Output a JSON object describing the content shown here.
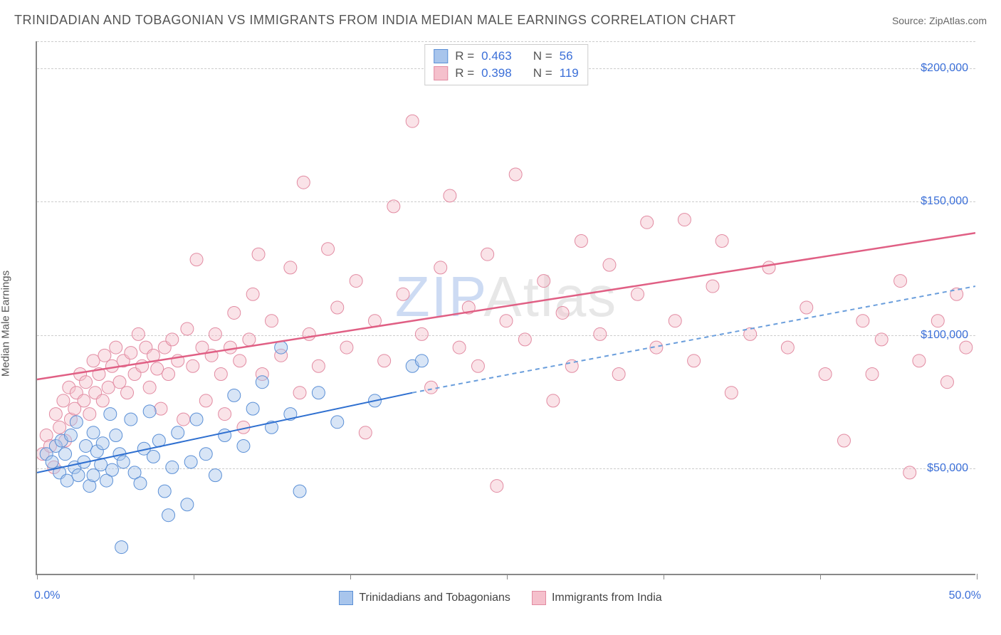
{
  "title": "TRINIDADIAN AND TOBAGONIAN VS IMMIGRANTS FROM INDIA MEDIAN MALE EARNINGS CORRELATION CHART",
  "source_label": "Source:",
  "source_name": "ZipAtlas.com",
  "ylabel": "Median Male Earnings",
  "watermark_a": "ZIP",
  "watermark_b": "Atlas",
  "chart": {
    "type": "scatter",
    "xlim": [
      0,
      50
    ],
    "ylim": [
      10000,
      210000
    ],
    "x_tick_positions": [
      0,
      8.33,
      16.67,
      25,
      33.33,
      41.67,
      50
    ],
    "x_tick_labels_shown": {
      "0": "0.0%",
      "50": "50.0%"
    },
    "y_gridlines": [
      50000,
      100000,
      150000,
      200000
    ],
    "y_tick_labels": [
      "$50,000",
      "$100,000",
      "$150,000",
      "$200,000"
    ],
    "y_grid_extra_top": 210000,
    "grid_color": "#cccccc",
    "background_color": "#ffffff",
    "axis_color": "#888888",
    "marker_radius": 9,
    "marker_opacity": 0.45,
    "series": [
      {
        "name": "Trinidadians and Tobagonians",
        "color_fill": "#a8c5ec",
        "color_stroke": "#5a8fd6",
        "r": 0.463,
        "n": 56,
        "trend": {
          "x1": 0,
          "y1": 48000,
          "x2": 20,
          "y2": 78000,
          "extend_x2": 50,
          "extend_y2": 118000,
          "solid_color": "#2e6fd0",
          "dash_color": "#6a9edc",
          "width": 2
        },
        "points": [
          [
            0.5,
            55000
          ],
          [
            0.8,
            52000
          ],
          [
            1.0,
            58000
          ],
          [
            1.2,
            48000
          ],
          [
            1.3,
            60000
          ],
          [
            1.5,
            55000
          ],
          [
            1.6,
            45000
          ],
          [
            1.8,
            62000
          ],
          [
            2.0,
            50000
          ],
          [
            2.1,
            67000
          ],
          [
            2.2,
            47000
          ],
          [
            2.5,
            52000
          ],
          [
            2.6,
            58000
          ],
          [
            2.8,
            43000
          ],
          [
            3.0,
            63000
          ],
          [
            3.0,
            47000
          ],
          [
            3.2,
            56000
          ],
          [
            3.4,
            51000
          ],
          [
            3.5,
            59000
          ],
          [
            3.7,
            45000
          ],
          [
            3.9,
            70000
          ],
          [
            4.0,
            49000
          ],
          [
            4.2,
            62000
          ],
          [
            4.4,
            55000
          ],
          [
            4.5,
            20000
          ],
          [
            4.6,
            52000
          ],
          [
            5.0,
            68000
          ],
          [
            5.2,
            48000
          ],
          [
            5.5,
            44000
          ],
          [
            5.7,
            57000
          ],
          [
            6.0,
            71000
          ],
          [
            6.2,
            54000
          ],
          [
            6.5,
            60000
          ],
          [
            6.8,
            41000
          ],
          [
            7.0,
            32000
          ],
          [
            7.2,
            50000
          ],
          [
            7.5,
            63000
          ],
          [
            8.0,
            36000
          ],
          [
            8.2,
            52000
          ],
          [
            8.5,
            68000
          ],
          [
            9.0,
            55000
          ],
          [
            9.5,
            47000
          ],
          [
            10.0,
            62000
          ],
          [
            10.5,
            77000
          ],
          [
            11.0,
            58000
          ],
          [
            11.5,
            72000
          ],
          [
            12.0,
            82000
          ],
          [
            12.5,
            65000
          ],
          [
            13.0,
            95000
          ],
          [
            13.5,
            70000
          ],
          [
            14.0,
            41000
          ],
          [
            15.0,
            78000
          ],
          [
            16.0,
            67000
          ],
          [
            18.0,
            75000
          ],
          [
            20.0,
            88000
          ],
          [
            20.5,
            90000
          ]
        ]
      },
      {
        "name": "Immigrants from India",
        "color_fill": "#f5c0cc",
        "color_stroke": "#e28ba2",
        "r": 0.398,
        "n": 119,
        "trend": {
          "x1": 0,
          "y1": 83000,
          "x2": 50,
          "y2": 138000,
          "solid_color": "#e05f84",
          "width": 2.5
        },
        "points": [
          [
            0.3,
            55000
          ],
          [
            0.5,
            62000
          ],
          [
            0.7,
            58000
          ],
          [
            0.9,
            50000
          ],
          [
            1.0,
            70000
          ],
          [
            1.2,
            65000
          ],
          [
            1.4,
            75000
          ],
          [
            1.5,
            60000
          ],
          [
            1.7,
            80000
          ],
          [
            1.8,
            68000
          ],
          [
            2.0,
            72000
          ],
          [
            2.1,
            78000
          ],
          [
            2.3,
            85000
          ],
          [
            2.5,
            75000
          ],
          [
            2.6,
            82000
          ],
          [
            2.8,
            70000
          ],
          [
            3.0,
            90000
          ],
          [
            3.1,
            78000
          ],
          [
            3.3,
            85000
          ],
          [
            3.5,
            75000
          ],
          [
            3.6,
            92000
          ],
          [
            3.8,
            80000
          ],
          [
            4.0,
            88000
          ],
          [
            4.2,
            95000
          ],
          [
            4.4,
            82000
          ],
          [
            4.6,
            90000
          ],
          [
            4.8,
            78000
          ],
          [
            5.0,
            93000
          ],
          [
            5.2,
            85000
          ],
          [
            5.4,
            100000
          ],
          [
            5.6,
            88000
          ],
          [
            5.8,
            95000
          ],
          [
            6.0,
            80000
          ],
          [
            6.2,
            92000
          ],
          [
            6.4,
            87000
          ],
          [
            6.6,
            72000
          ],
          [
            6.8,
            95000
          ],
          [
            7.0,
            85000
          ],
          [
            7.2,
            98000
          ],
          [
            7.5,
            90000
          ],
          [
            7.8,
            68000
          ],
          [
            8.0,
            102000
          ],
          [
            8.3,
            88000
          ],
          [
            8.5,
            128000
          ],
          [
            8.8,
            95000
          ],
          [
            9.0,
            75000
          ],
          [
            9.3,
            92000
          ],
          [
            9.5,
            100000
          ],
          [
            9.8,
            85000
          ],
          [
            10.0,
            70000
          ],
          [
            10.3,
            95000
          ],
          [
            10.5,
            108000
          ],
          [
            10.8,
            90000
          ],
          [
            11.0,
            65000
          ],
          [
            11.3,
            98000
          ],
          [
            11.5,
            115000
          ],
          [
            11.8,
            130000
          ],
          [
            12.0,
            85000
          ],
          [
            12.5,
            105000
          ],
          [
            13.0,
            92000
          ],
          [
            13.5,
            125000
          ],
          [
            14.0,
            78000
          ],
          [
            14.2,
            157000
          ],
          [
            14.5,
            100000
          ],
          [
            15.0,
            88000
          ],
          [
            15.5,
            132000
          ],
          [
            16.0,
            110000
          ],
          [
            16.5,
            95000
          ],
          [
            17.0,
            120000
          ],
          [
            17.5,
            63000
          ],
          [
            18.0,
            105000
          ],
          [
            18.5,
            90000
          ],
          [
            19.0,
            148000
          ],
          [
            19.5,
            115000
          ],
          [
            20.0,
            180000
          ],
          [
            20.5,
            100000
          ],
          [
            21.0,
            80000
          ],
          [
            21.5,
            125000
          ],
          [
            22.0,
            152000
          ],
          [
            22.5,
            95000
          ],
          [
            23.0,
            110000
          ],
          [
            23.5,
            88000
          ],
          [
            24.0,
            130000
          ],
          [
            24.5,
            43000
          ],
          [
            25.0,
            105000
          ],
          [
            25.5,
            160000
          ],
          [
            26.0,
            98000
          ],
          [
            27.0,
            120000
          ],
          [
            27.5,
            75000
          ],
          [
            28.0,
            108000
          ],
          [
            28.5,
            88000
          ],
          [
            29.0,
            135000
          ],
          [
            30.0,
            100000
          ],
          [
            30.5,
            126000
          ],
          [
            31.0,
            85000
          ],
          [
            32.0,
            115000
          ],
          [
            32.5,
            142000
          ],
          [
            33.0,
            95000
          ],
          [
            34.0,
            105000
          ],
          [
            34.5,
            143000
          ],
          [
            35.0,
            90000
          ],
          [
            36.0,
            118000
          ],
          [
            36.5,
            135000
          ],
          [
            37.0,
            78000
          ],
          [
            38.0,
            100000
          ],
          [
            39.0,
            125000
          ],
          [
            40.0,
            95000
          ],
          [
            41.0,
            110000
          ],
          [
            42.0,
            85000
          ],
          [
            43.0,
            60000
          ],
          [
            44.0,
            105000
          ],
          [
            44.5,
            85000
          ],
          [
            45.0,
            98000
          ],
          [
            46.0,
            120000
          ],
          [
            46.5,
            48000
          ],
          [
            47.0,
            90000
          ],
          [
            48.0,
            105000
          ],
          [
            48.5,
            82000
          ],
          [
            49.0,
            115000
          ],
          [
            49.5,
            95000
          ]
        ]
      }
    ]
  },
  "legend_top": {
    "r_label": "R =",
    "n_label": "N ="
  },
  "legend_bottom": {
    "series1": "Trinidadians and Tobagonians",
    "series2": "Immigrants from India"
  }
}
